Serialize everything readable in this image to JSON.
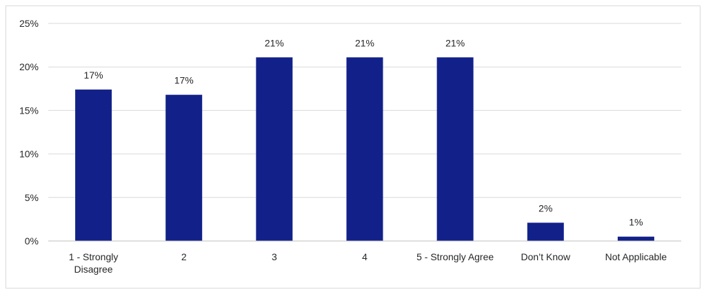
{
  "chart_data": {
    "type": "bar",
    "title": "",
    "xlabel": "",
    "ylabel": "",
    "categories": [
      [
        "1 - Strongly",
        "Disagree"
      ],
      [
        "2"
      ],
      [
        "3"
      ],
      [
        "4"
      ],
      [
        "5 - Strongly Agree"
      ],
      [
        "Don’t Know"
      ],
      [
        "Not Applicable"
      ]
    ],
    "values": [
      17.4,
      16.8,
      21.1,
      21.1,
      21.1,
      2.1,
      0.5
    ],
    "data_labels": [
      "17%",
      "17%",
      "21%",
      "21%",
      "21%",
      "2%",
      "1%"
    ],
    "ylim": [
      0,
      25
    ],
    "y_ticks": [
      0,
      5,
      10,
      15,
      20,
      25
    ],
    "y_tick_labels": [
      "0%",
      "5%",
      "10%",
      "15%",
      "20%",
      "25%"
    ],
    "grid": true,
    "legend": "none",
    "colors": {
      "bar": "#12218a",
      "grid": "#d9d9d9",
      "axis": "#bfbfbf"
    }
  }
}
